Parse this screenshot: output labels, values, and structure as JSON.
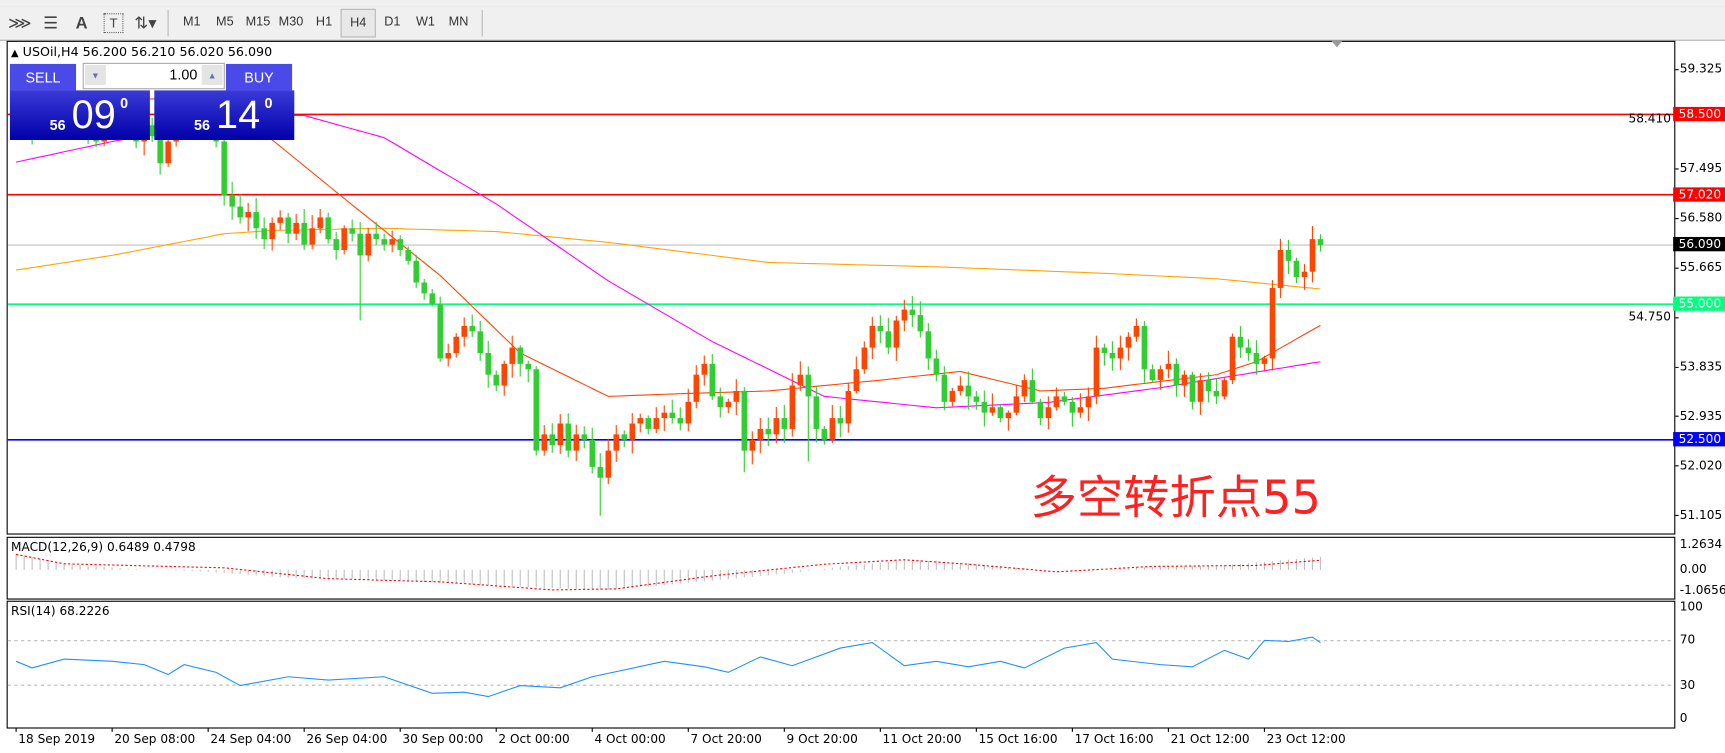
{
  "toolbar": {
    "tools": [
      {
        "icon": "elliott-wave-icon",
        "glyph": "⋙"
      },
      {
        "icon": "fibonacci-icon",
        "glyph": "☰"
      },
      {
        "icon": "text-icon",
        "glyph": "A"
      },
      {
        "icon": "text-label-icon",
        "glyph": "T"
      },
      {
        "icon": "arrows-dropdown-icon",
        "glyph": "⇅▾"
      }
    ],
    "timeframes": [
      "M1",
      "M5",
      "M15",
      "M30",
      "H1",
      "H4",
      "D1",
      "W1",
      "MN"
    ],
    "active_timeframe": "H4"
  },
  "chart": {
    "symbol_line": "USOil,H4  56.200 56.210 56.020 56.090",
    "symbol_arrow": "▲",
    "annotation": "多空转折点55",
    "price_axis": [
      "59.325",
      "58.410",
      "57.495",
      "56.580",
      "55.665",
      "54.750",
      "53.835",
      "52.935",
      "52.020",
      "51.105"
    ],
    "price_axis_values": [
      59.325,
      58.41,
      57.495,
      56.58,
      55.665,
      54.75,
      53.835,
      52.935,
      52.02,
      51.105
    ],
    "horizontal_lines": [
      {
        "label": "58.500",
        "value": 58.5,
        "color": "#ff0000"
      },
      {
        "label": "57.020",
        "value": 57.02,
        "color": "#ff0000"
      },
      {
        "label": "56.090",
        "value": 56.09,
        "color": "#c0c0c0",
        "tag_color": "#000000"
      },
      {
        "label": "55.000",
        "value": 55.0,
        "color": "#00ff7f"
      },
      {
        "label": "52.500",
        "value": 52.5,
        "color": "#0000ff"
      }
    ],
    "bull_color": "#ff4500",
    "bear_color": "#32cd32",
    "closes": [
      58.3,
      58.5,
      58.2,
      58.4,
      58.6,
      58.3,
      58.1,
      58.4,
      58.5,
      58.2,
      58.0,
      58.3,
      58.6,
      58.4,
      58.2,
      58.0,
      58.3,
      58.1,
      57.6,
      58.0,
      58.3,
      58.5,
      58.4,
      58.2,
      58.3,
      58.0,
      57.0,
      56.8,
      56.6,
      56.7,
      56.4,
      56.2,
      56.5,
      56.6,
      56.3,
      56.5,
      56.1,
      56.4,
      56.6,
      56.2,
      56.0,
      56.4,
      56.3,
      55.9,
      56.3,
      56.2,
      56.1,
      56.2,
      56.0,
      55.8,
      55.4,
      55.2,
      55.0,
      54.0,
      54.1,
      54.4,
      54.6,
      54.5,
      54.1,
      53.7,
      53.5,
      53.9,
      54.2,
      53.9,
      53.8,
      52.3,
      52.6,
      52.4,
      52.8,
      52.3,
      52.6,
      52.5,
      52.0,
      51.8,
      52.3,
      52.6,
      52.5,
      52.8,
      52.9,
      52.7,
      52.9,
      53.0,
      52.9,
      52.8,
      53.2,
      53.7,
      53.9,
      53.3,
      53.1,
      53.2,
      53.4,
      52.3,
      52.5,
      52.7,
      52.6,
      52.9,
      52.7,
      53.5,
      53.7,
      53.3,
      52.7,
      52.5,
      52.9,
      52.8,
      53.4,
      53.8,
      54.2,
      54.6,
      54.5,
      54.2,
      54.7,
      54.9,
      54.8,
      54.5,
      54.0,
      53.7,
      53.2,
      53.4,
      53.5,
      53.3,
      53.2,
      53.0,
      53.1,
      52.9,
      53.0,
      53.3,
      53.6,
      53.2,
      52.9,
      53.1,
      53.3,
      53.2,
      53.0,
      53.1,
      53.3,
      54.2,
      54.1,
      54.0,
      54.2,
      54.4,
      54.6,
      53.8,
      53.6,
      53.8,
      53.9,
      53.5,
      53.7,
      53.2,
      53.6,
      53.4,
      53.3,
      53.6,
      54.4,
      54.2,
      54.1,
      53.9,
      54.0,
      55.3,
      56.0,
      55.8,
      55.5,
      55.6,
      56.2,
      56.09
    ],
    "last_bar": {
      "open": 56.2,
      "high": 56.21,
      "low": 56.02,
      "close": 56.09
    },
    "long_wicks": [
      {
        "bar": 43,
        "low": 54.7
      },
      {
        "bar": 73,
        "low": 51.1
      },
      {
        "bar": 91,
        "low": 51.9
      },
      {
        "bar": 99,
        "low": 52.1
      }
    ],
    "moving_averages": [
      {
        "color": "#ffa500",
        "points": [
          [
            0,
            55.63
          ],
          [
            12,
            55.9
          ],
          [
            26,
            56.3
          ],
          [
            32,
            56.36
          ],
          [
            46,
            56.4
          ],
          [
            60,
            56.34
          ],
          [
            74,
            56.14
          ],
          [
            94,
            55.77
          ],
          [
            115,
            55.69
          ],
          [
            136,
            55.57
          ],
          [
            150,
            55.47
          ],
          [
            163,
            55.28
          ]
        ]
      },
      {
        "color": "#ff00ff",
        "points": [
          [
            0,
            57.62
          ],
          [
            12,
            58.0
          ],
          [
            30,
            58.48
          ],
          [
            36,
            58.48
          ],
          [
            46,
            58.07
          ],
          [
            60,
            56.85
          ],
          [
            74,
            55.43
          ],
          [
            87,
            54.31
          ],
          [
            101,
            53.3
          ],
          [
            115,
            53.09
          ],
          [
            129,
            53.19
          ],
          [
            143,
            53.46
          ],
          [
            163,
            53.94
          ]
        ]
      },
      {
        "color": "#ff4500",
        "points": [
          [
            0,
            58.7
          ],
          [
            20,
            58.8
          ],
          [
            30,
            58.27
          ],
          [
            41,
            56.95
          ],
          [
            53,
            55.53
          ],
          [
            63,
            54.1
          ],
          [
            74,
            53.3
          ],
          [
            83,
            53.35
          ],
          [
            94,
            53.4
          ],
          [
            101,
            53.5
          ],
          [
            108,
            53.6
          ],
          [
            118,
            53.76
          ],
          [
            128,
            53.4
          ],
          [
            136,
            53.45
          ],
          [
            150,
            53.7
          ],
          [
            155,
            53.94
          ],
          [
            163,
            54.61
          ]
        ]
      }
    ],
    "time_axis": [
      {
        "bar": 0,
        "label": "18 Sep 2019"
      },
      {
        "bar": 12,
        "label": "20 Sep 08:00"
      },
      {
        "bar": 24,
        "label": "24 Sep 04:00"
      },
      {
        "bar": 36,
        "label": "26 Sep 04:00"
      },
      {
        "bar": 48,
        "label": "30 Sep 00:00"
      },
      {
        "bar": 60,
        "label": "2 Oct 00:00"
      },
      {
        "bar": 72,
        "label": "4 Oct 00:00"
      },
      {
        "bar": 84,
        "label": "7 Oct 20:00"
      },
      {
        "bar": 96,
        "label": "9 Oct 20:00"
      },
      {
        "bar": 108,
        "label": "11 Oct 20:00"
      },
      {
        "bar": 120,
        "label": "15 Oct 16:00"
      },
      {
        "bar": 132,
        "label": "17 Oct 16:00"
      },
      {
        "bar": 144,
        "label": "21 Oct 12:00"
      },
      {
        "bar": 156,
        "label": "23 Oct 12:00"
      }
    ]
  },
  "trade_panel": {
    "sell_label": "SELL",
    "buy_label": "BUY",
    "lot": "1.00",
    "sell_price": {
      "big": "56",
      "main": "09",
      "sup": "0"
    },
    "buy_price": {
      "big": "56",
      "main": "14",
      "sup": "0"
    }
  },
  "macd": {
    "title": "MACD(12,26,9) 0.6489 0.4798",
    "axis": [
      "1.2634",
      "0.00",
      "-1.0656"
    ],
    "histogram_color": "#c0c0c0",
    "signal_color": "#ff0000",
    "histogram_points": [
      [
        0,
        0.8
      ],
      [
        6,
        0.3
      ],
      [
        14,
        0.05
      ],
      [
        24,
        -0.1
      ],
      [
        34,
        -0.4
      ],
      [
        46,
        -0.5
      ],
      [
        56,
        -0.7
      ],
      [
        66,
        -0.9
      ],
      [
        74,
        -1.0
      ],
      [
        80,
        -0.8
      ],
      [
        88,
        -0.5
      ],
      [
        96,
        -0.2
      ],
      [
        104,
        0.2
      ],
      [
        112,
        0.5
      ],
      [
        120,
        0.3
      ],
      [
        128,
        0.0
      ],
      [
        134,
        -0.05
      ],
      [
        142,
        0.15
      ],
      [
        150,
        0.2
      ],
      [
        156,
        0.4
      ],
      [
        163,
        0.65
      ]
    ],
    "signal_points": [
      [
        0,
        0.77
      ],
      [
        6,
        0.3
      ],
      [
        26,
        0.1
      ],
      [
        39,
        -0.44
      ],
      [
        53,
        -0.6
      ],
      [
        67,
        -1.0
      ],
      [
        75,
        -0.95
      ],
      [
        87,
        -0.3
      ],
      [
        101,
        0.28
      ],
      [
        111,
        0.5
      ],
      [
        119,
        0.28
      ],
      [
        130,
        -0.1
      ],
      [
        142,
        0.17
      ],
      [
        155,
        0.22
      ],
      [
        163,
        0.48
      ]
    ]
  },
  "rsi": {
    "title": "RSI(14) 68.2226",
    "axis": [
      "100",
      "70",
      "30",
      "0"
    ],
    "levels": [
      70,
      30
    ],
    "color": "#1e90ff",
    "points": [
      [
        0,
        51.5
      ],
      [
        2,
        45.5
      ],
      [
        5,
        51.5
      ],
      [
        6,
        53.5
      ],
      [
        12,
        51.5
      ],
      [
        16,
        48.5
      ],
      [
        19,
        39.6
      ],
      [
        21,
        48.5
      ],
      [
        25,
        41.6
      ],
      [
        28,
        29.7
      ],
      [
        34,
        37.6
      ],
      [
        39,
        34.7
      ],
      [
        46,
        37.6
      ],
      [
        52,
        22.8
      ],
      [
        56,
        23.8
      ],
      [
        59,
        19.8
      ],
      [
        63,
        29.7
      ],
      [
        68,
        27.7
      ],
      [
        72,
        37.6
      ],
      [
        81,
        51.5
      ],
      [
        86,
        46.5
      ],
      [
        89,
        41.6
      ],
      [
        93,
        55.4
      ],
      [
        97,
        47.5
      ],
      [
        103,
        63.4
      ],
      [
        107,
        68.3
      ],
      [
        111,
        47.5
      ],
      [
        115,
        51.5
      ],
      [
        119,
        46.5
      ],
      [
        123,
        51.5
      ],
      [
        126,
        45.5
      ],
      [
        131,
        63.4
      ],
      [
        135,
        68.3
      ],
      [
        137,
        53.5
      ],
      [
        143,
        48.5
      ],
      [
        147,
        46.5
      ],
      [
        151,
        61.4
      ],
      [
        154,
        53.5
      ],
      [
        156,
        70.3
      ],
      [
        159,
        69.3
      ],
      [
        162,
        73.3
      ],
      [
        163,
        68.2
      ]
    ]
  }
}
